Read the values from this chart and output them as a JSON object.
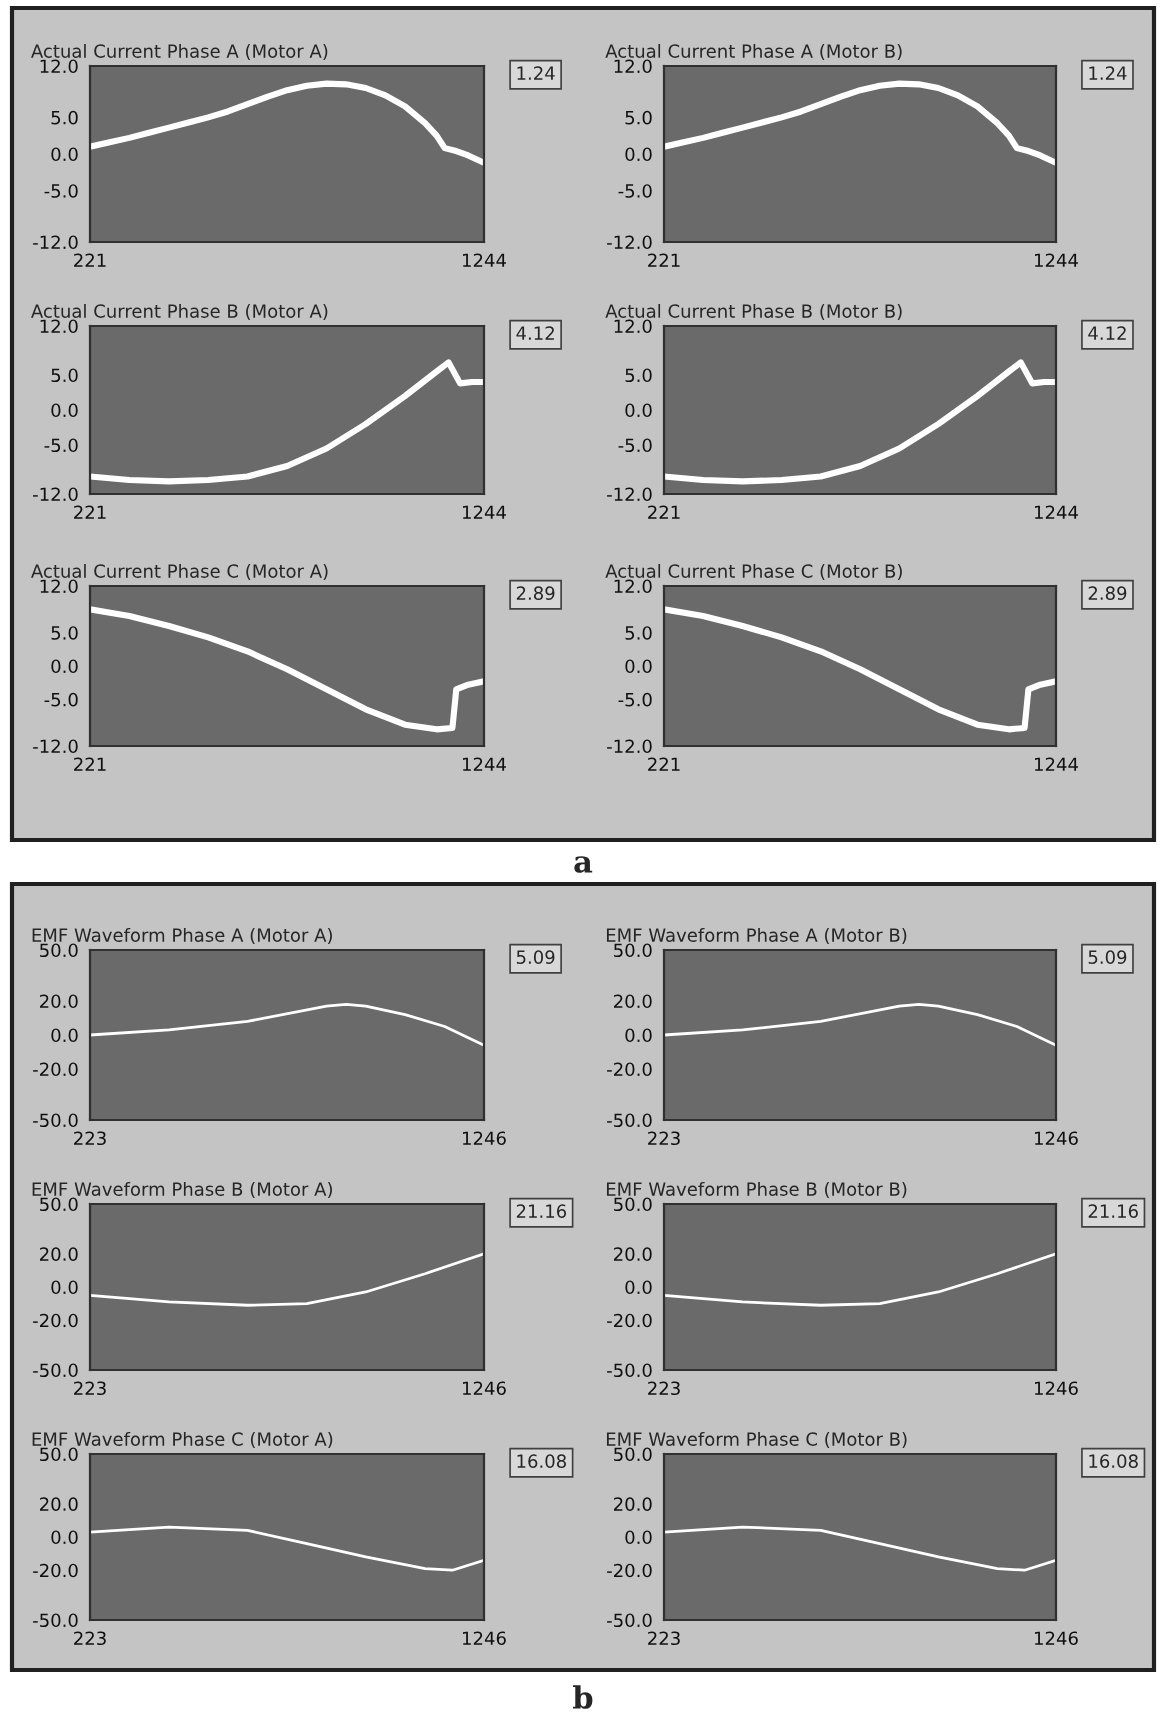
{
  "chart_data": [
    {
      "type": "line",
      "title": "Actual Current Phase A (Motor A)",
      "xlim": [
        221,
        1244
      ],
      "xticks": [
        221,
        1244
      ],
      "ylim": [
        -12,
        12
      ],
      "yticks": [
        {
          "value": 12,
          "label": "12.0"
        },
        {
          "value": 5,
          "label": "5.0"
        },
        {
          "value": 0,
          "label": "0.0"
        },
        {
          "value": -5,
          "label": "-5.0"
        },
        {
          "value": -12,
          "label": "-12.0"
        }
      ],
      "x": [
        221,
        272,
        323,
        374,
        426,
        477,
        528,
        579,
        630,
        681,
        733,
        784,
        835,
        886,
        937,
        988,
        1039,
        1091,
        1121,
        1142,
        1172,
        1203,
        1244
      ],
      "series": [
        {
          "color": "#ffffff",
          "values": [
            1.0,
            1.6,
            2.2,
            2.9,
            3.6,
            4.3,
            5.0,
            5.8,
            6.8,
            7.8,
            8.7,
            9.3,
            9.6,
            9.5,
            9.0,
            8.0,
            6.5,
            4.2,
            2.5,
            0.8,
            0.4,
            -0.2,
            -1.2
          ]
        }
      ],
      "annotations": [
        "1.24"
      ]
    },
    {
      "type": "line",
      "title": "Actual Current Phase A (Motor B)",
      "xlim": [
        221,
        1244
      ],
      "xticks": [
        221,
        1244
      ],
      "ylim": [
        -12,
        12
      ],
      "yticks": [
        {
          "value": 12,
          "label": "12.0"
        },
        {
          "value": 5,
          "label": "5.0"
        },
        {
          "value": 0,
          "label": "0.0"
        },
        {
          "value": -5,
          "label": "-5.0"
        },
        {
          "value": -12,
          "label": "-12.0"
        }
      ],
      "x": [
        221,
        272,
        323,
        374,
        426,
        477,
        528,
        579,
        630,
        681,
        733,
        784,
        835,
        886,
        937,
        988,
        1039,
        1091,
        1121,
        1142,
        1172,
        1203,
        1244
      ],
      "series": [
        {
          "color": "#ffffff",
          "values": [
            1.0,
            1.6,
            2.2,
            2.9,
            3.6,
            4.3,
            5.0,
            5.8,
            6.8,
            7.8,
            8.7,
            9.3,
            9.6,
            9.5,
            9.0,
            8.0,
            6.5,
            4.2,
            2.5,
            0.8,
            0.4,
            -0.2,
            -1.2
          ]
        }
      ],
      "annotations": [
        "1.24"
      ]
    },
    {
      "type": "line",
      "title": "Actual Current Phase B (Motor A)",
      "xlim": [
        221,
        1244
      ],
      "xticks": [
        221,
        1244
      ],
      "ylim": [
        -12,
        12
      ],
      "yticks": [
        {
          "value": 12,
          "label": "12.0"
        },
        {
          "value": 5,
          "label": "5.0"
        },
        {
          "value": 0,
          "label": "0.0"
        },
        {
          "value": -5,
          "label": "-5.0"
        },
        {
          "value": -12,
          "label": "-12.0"
        }
      ],
      "x": [
        221,
        323,
        426,
        528,
        630,
        733,
        835,
        937,
        1039,
        1121,
        1152,
        1182,
        1213,
        1244
      ],
      "series": [
        {
          "color": "#ffffff",
          "values": [
            -9.5,
            -10,
            -10.2,
            -10,
            -9.5,
            -8,
            -5.5,
            -2,
            2,
            5.5,
            6.8,
            3.8,
            4,
            4
          ]
        }
      ],
      "annotations": [
        "4.12"
      ]
    },
    {
      "type": "line",
      "title": "Actual Current Phase B (Motor B)",
      "xlim": [
        221,
        1244
      ],
      "xticks": [
        221,
        1244
      ],
      "ylim": [
        -12,
        12
      ],
      "yticks": [
        {
          "value": 12,
          "label": "12.0"
        },
        {
          "value": 5,
          "label": "5.0"
        },
        {
          "value": 0,
          "label": "0.0"
        },
        {
          "value": -5,
          "label": "-5.0"
        },
        {
          "value": -12,
          "label": "-12.0"
        }
      ],
      "x": [
        221,
        323,
        426,
        528,
        630,
        733,
        835,
        937,
        1039,
        1121,
        1152,
        1182,
        1213,
        1244
      ],
      "series": [
        {
          "color": "#ffffff",
          "values": [
            -9.5,
            -10,
            -10.2,
            -10,
            -9.5,
            -8,
            -5.5,
            -2,
            2,
            5.5,
            6.8,
            3.8,
            4,
            4
          ]
        }
      ],
      "annotations": [
        "4.12"
      ]
    },
    {
      "type": "line",
      "title": "Actual Current Phase C (Motor A)",
      "xlim": [
        221,
        1244
      ],
      "xticks": [
        221,
        1244
      ],
      "ylim": [
        -12,
        12
      ],
      "yticks": [
        {
          "value": 12,
          "label": "12.0"
        },
        {
          "value": 5,
          "label": "5.0"
        },
        {
          "value": 0,
          "label": "0.0"
        },
        {
          "value": -5,
          "label": "-5.0"
        },
        {
          "value": -12,
          "label": "-12.0"
        }
      ],
      "x": [
        221,
        323,
        426,
        528,
        630,
        733,
        835,
        937,
        1039,
        1121,
        1162,
        1172,
        1203,
        1244
      ],
      "series": [
        {
          "color": "#ffffff",
          "values": [
            8.5,
            7.5,
            6,
            4.3,
            2.2,
            -0.5,
            -3.5,
            -6.5,
            -8.8,
            -9.5,
            -9.3,
            -3.5,
            -2.8,
            -2.3
          ]
        }
      ],
      "annotations": [
        "2.89",
        "a"
      ]
    },
    {
      "type": "line",
      "title": "Actual Current Phase C (Motor B)",
      "xlim": [
        221,
        1244
      ],
      "xticks": [
        221,
        1244
      ],
      "ylim": [
        -12,
        12
      ],
      "yticks": [
        {
          "value": 12,
          "label": "12.0"
        },
        {
          "value": 5,
          "label": "5.0"
        },
        {
          "value": 0,
          "label": "0.0"
        },
        {
          "value": -5,
          "label": "-5.0"
        },
        {
          "value": -12,
          "label": "-12.0"
        }
      ],
      "x": [
        221,
        323,
        426,
        528,
        630,
        733,
        835,
        937,
        1039,
        1121,
        1162,
        1172,
        1203,
        1244
      ],
      "series": [
        {
          "color": "#ffffff",
          "values": [
            8.5,
            7.5,
            6,
            4.3,
            2.2,
            -0.5,
            -3.5,
            -6.5,
            -8.8,
            -9.5,
            -9.3,
            -3.5,
            -2.8,
            -2.3
          ]
        }
      ],
      "annotations": [
        "2.89"
      ]
    },
    {
      "type": "line",
      "title": "EMF Waveform Phase A (Motor A)",
      "xlim": [
        223,
        1246
      ],
      "xticks": [
        223,
        1246
      ],
      "ylim": [
        -50,
        50
      ],
      "yticks": [
        {
          "value": 50,
          "label": "50.0"
        },
        {
          "value": 20,
          "label": "20.0"
        },
        {
          "value": 0,
          "label": "0.0"
        },
        {
          "value": -20,
          "label": "-20.0"
        },
        {
          "value": -50,
          "label": "-50.0"
        }
      ],
      "x": [
        223,
        428,
        632,
        837,
        888,
        939,
        1041,
        1144,
        1246
      ],
      "series": [
        {
          "color": "#ffffff",
          "values": [
            0,
            3,
            8,
            17,
            18,
            17,
            12,
            5,
            -6
          ]
        }
      ],
      "annotations": [
        "5.09"
      ]
    },
    {
      "type": "line",
      "title": "EMF Waveform Phase A (Motor B)",
      "xlim": [
        223,
        1246
      ],
      "xticks": [
        223,
        1246
      ],
      "ylim": [
        -50,
        50
      ],
      "yticks": [
        {
          "value": 50,
          "label": "50.0"
        },
        {
          "value": 20,
          "label": "20.0"
        },
        {
          "value": 0,
          "label": "0.0"
        },
        {
          "value": -20,
          "label": "-20.0"
        },
        {
          "value": -50,
          "label": "-50.0"
        }
      ],
      "x": [
        223,
        428,
        632,
        837,
        888,
        939,
        1041,
        1144,
        1246
      ],
      "series": [
        {
          "color": "#ffffff",
          "values": [
            0,
            3,
            8,
            17,
            18,
            17,
            12,
            5,
            -6
          ]
        }
      ],
      "annotations": [
        "5.09"
      ]
    },
    {
      "type": "line",
      "title": "EMF Waveform Phase B (Motor A)",
      "xlim": [
        223,
        1246
      ],
      "xticks": [
        223,
        1246
      ],
      "ylim": [
        -50,
        50
      ],
      "yticks": [
        {
          "value": 50,
          "label": "50.0"
        },
        {
          "value": 20,
          "label": "20.0"
        },
        {
          "value": 0,
          "label": "0.0"
        },
        {
          "value": -20,
          "label": "-20.0"
        },
        {
          "value": -50,
          "label": "-50.0"
        }
      ],
      "x": [
        223,
        428,
        632,
        786,
        939,
        1093,
        1246
      ],
      "series": [
        {
          "color": "#ffffff",
          "values": [
            -5,
            -9,
            -11,
            -10,
            -3,
            8,
            20
          ]
        }
      ],
      "annotations": [
        "21.16"
      ]
    },
    {
      "type": "line",
      "title": "EMF Waveform Phase B (Motor B)",
      "xlim": [
        223,
        1246
      ],
      "xticks": [
        223,
        1246
      ],
      "ylim": [
        -50,
        50
      ],
      "yticks": [
        {
          "value": 50,
          "label": "50.0"
        },
        {
          "value": 20,
          "label": "20.0"
        },
        {
          "value": 0,
          "label": "0.0"
        },
        {
          "value": -20,
          "label": "-20.0"
        },
        {
          "value": -50,
          "label": "-50.0"
        }
      ],
      "x": [
        223,
        428,
        632,
        786,
        939,
        1093,
        1246
      ],
      "series": [
        {
          "color": "#ffffff",
          "values": [
            -5,
            -9,
            -11,
            -10,
            -3,
            8,
            20
          ]
        }
      ],
      "annotations": [
        "21.16"
      ]
    },
    {
      "type": "line",
      "title": "EMF Waveform Phase C (Motor A)",
      "xlim": [
        223,
        1246
      ],
      "xticks": [
        223,
        1246
      ],
      "ylim": [
        -50,
        50
      ],
      "yticks": [
        {
          "value": 50,
          "label": "50.0"
        },
        {
          "value": 20,
          "label": "20.0"
        },
        {
          "value": 0,
          "label": "0.0"
        },
        {
          "value": -20,
          "label": "-20.0"
        },
        {
          "value": -50,
          "label": "-50.0"
        }
      ],
      "x": [
        223,
        428,
        632,
        786,
        939,
        1093,
        1164,
        1246
      ],
      "series": [
        {
          "color": "#ffffff",
          "values": [
            3,
            6,
            4,
            -4,
            -12,
            -19,
            -20,
            -14
          ]
        }
      ],
      "annotations": [
        "16.08",
        "b"
      ]
    },
    {
      "type": "line",
      "title": "EMF Waveform Phase C (Motor B)",
      "xlim": [
        223,
        1246
      ],
      "xticks": [
        223,
        1246
      ],
      "ylim": [
        -50,
        50
      ],
      "yticks": [
        {
          "value": 50,
          "label": "50.0"
        },
        {
          "value": 20,
          "label": "20.0"
        },
        {
          "value": 0,
          "label": "0.0"
        },
        {
          "value": -20,
          "label": "-20.0"
        },
        {
          "value": -50,
          "label": "-50.0"
        }
      ],
      "x": [
        223,
        428,
        632,
        786,
        939,
        1093,
        1164,
        1246
      ],
      "series": [
        {
          "color": "#ffffff",
          "values": [
            3,
            6,
            4,
            -4,
            -12,
            -19,
            -20,
            -14
          ]
        }
      ],
      "annotations": [
        "16.08"
      ]
    }
  ]
}
